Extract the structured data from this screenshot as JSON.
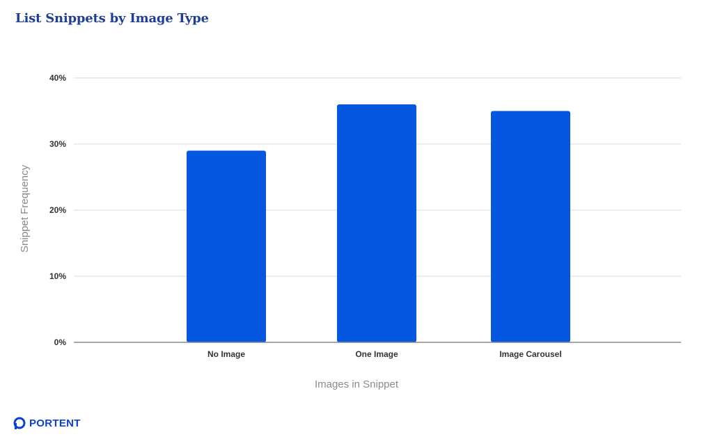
{
  "brand": {
    "name": "PORTENT",
    "color": "#0b3fd6"
  },
  "chart_data": {
    "type": "bar",
    "title": "List Snippets by Image Type",
    "xlabel": "Images in Snippet",
    "ylabel": "Snippet Frequency",
    "categories": [
      "No Image",
      "One Image",
      "Image Carousel"
    ],
    "values": [
      29,
      36,
      35
    ],
    "ylim": [
      0,
      40
    ],
    "yticks": [
      {
        "value": 0,
        "label": "0%"
      },
      {
        "value": 10,
        "label": "10%"
      },
      {
        "value": 20,
        "label": "20%"
      },
      {
        "value": 30,
        "label": "30%"
      },
      {
        "value": 40,
        "label": "40%"
      }
    ],
    "grid": true,
    "legend": "none",
    "bar_color": "#0657e0"
  }
}
